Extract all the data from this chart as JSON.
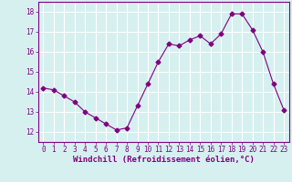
{
  "x": [
    0,
    1,
    2,
    3,
    4,
    5,
    6,
    7,
    8,
    9,
    10,
    11,
    12,
    13,
    14,
    15,
    16,
    17,
    18,
    19,
    20,
    21,
    22,
    23
  ],
  "y": [
    14.2,
    14.1,
    13.8,
    13.5,
    13.0,
    12.7,
    12.4,
    12.1,
    12.2,
    13.3,
    14.4,
    15.5,
    16.4,
    16.3,
    16.6,
    16.8,
    16.4,
    16.9,
    17.9,
    17.9,
    17.1,
    16.0,
    14.4,
    13.1
  ],
  "line_color": "#800080",
  "marker": "D",
  "marker_size": 2.5,
  "bg_color": "#d6f0f0",
  "grid_color": "#ffffff",
  "xlabel": "Windchill (Refroidissement éolien,°C)",
  "xlabel_color": "#800080",
  "tick_color": "#800080",
  "ylim": [
    11.5,
    18.5
  ],
  "yticks": [
    12,
    13,
    14,
    15,
    16,
    17,
    18
  ],
  "xticks": [
    0,
    1,
    2,
    3,
    4,
    5,
    6,
    7,
    8,
    9,
    10,
    11,
    12,
    13,
    14,
    15,
    16,
    17,
    18,
    19,
    20,
    21,
    22,
    23
  ],
  "tick_fontsize": 5.5,
  "xlabel_fontsize": 6.5
}
